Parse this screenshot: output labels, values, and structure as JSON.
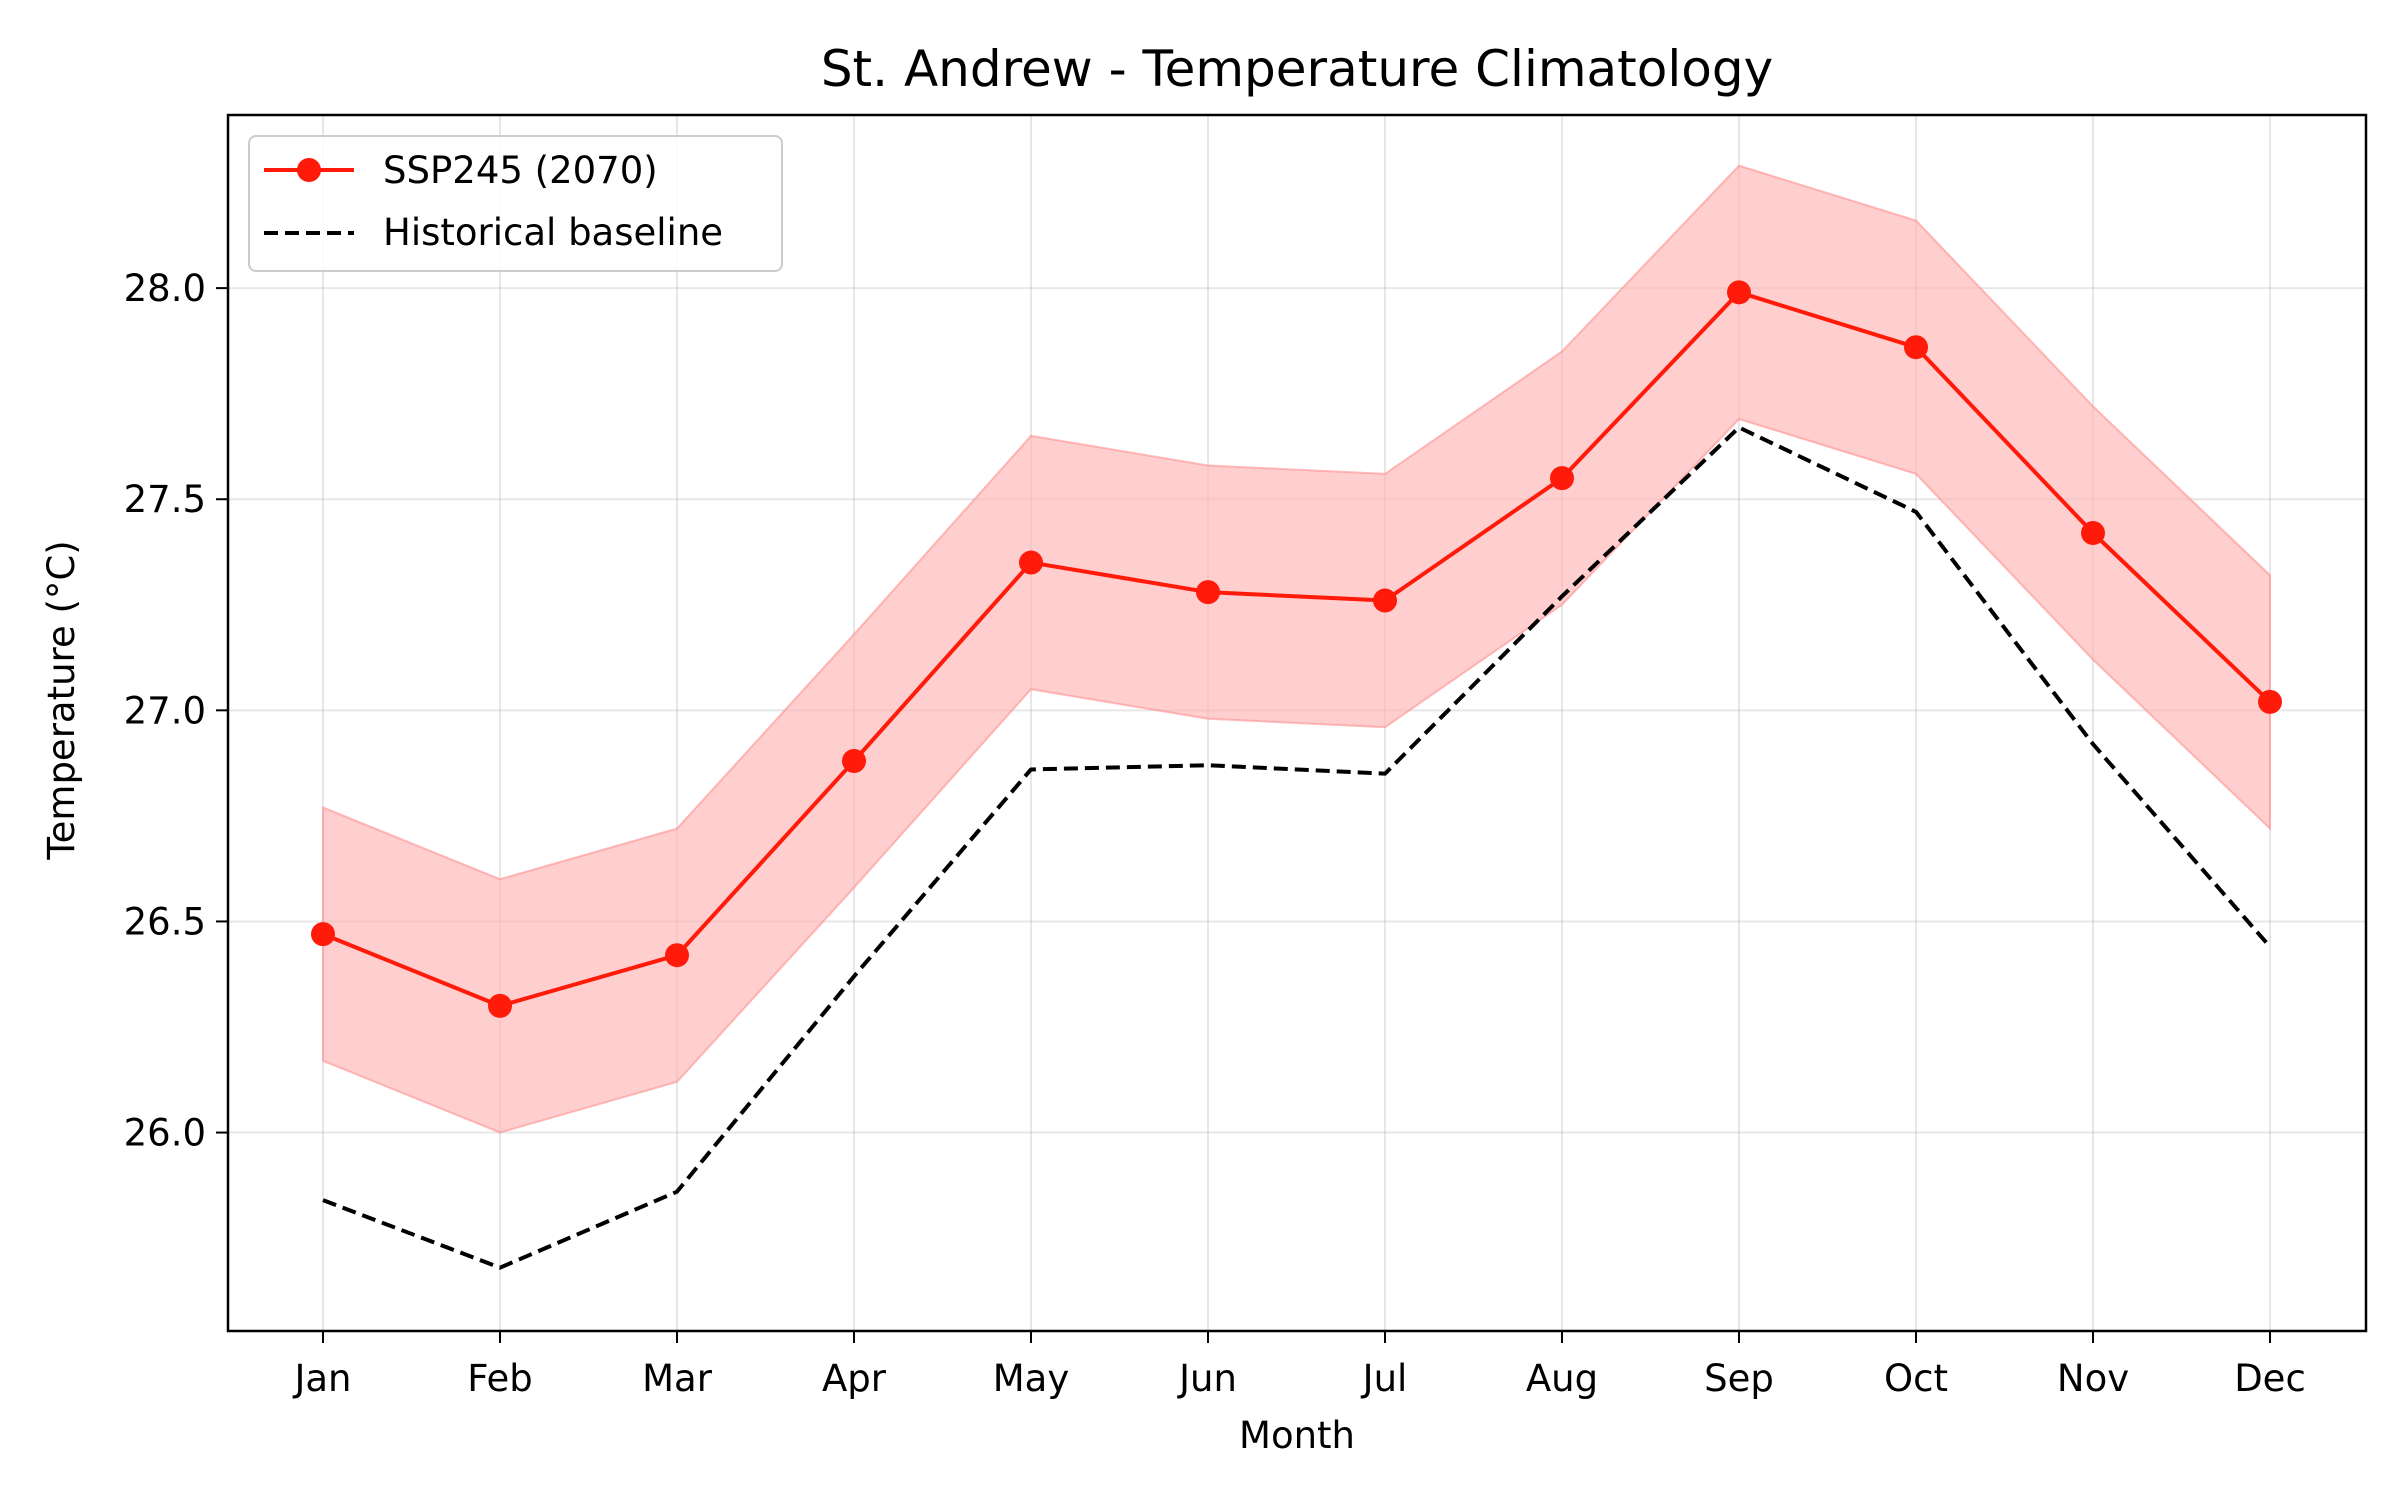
{
  "chart_data": {
    "type": "line",
    "title": "St. Andrew - Temperature Climatology",
    "xlabel": "Month",
    "ylabel": "Temperature (°C)",
    "categories": [
      "Jan",
      "Feb",
      "Mar",
      "Apr",
      "May",
      "Jun",
      "Jul",
      "Aug",
      "Sep",
      "Oct",
      "Nov",
      "Dec"
    ],
    "ylim": [
      25.53,
      28.41
    ],
    "yticks": [
      "26.0",
      "26.5",
      "27.0",
      "27.5",
      "28.0"
    ],
    "grid": true,
    "legend_position": "upper left",
    "series": [
      {
        "name": "SSP245 (2070)",
        "style": "solid-with-markers",
        "color": "#ff1a0a",
        "values": [
          26.47,
          26.3,
          26.42,
          26.88,
          27.35,
          27.28,
          27.26,
          27.55,
          27.99,
          27.86,
          27.42,
          27.02
        ],
        "band_lower": [
          26.17,
          26.0,
          26.12,
          26.58,
          27.05,
          26.98,
          26.96,
          27.25,
          27.69,
          27.56,
          27.12,
          26.72
        ],
        "band_upper": [
          26.77,
          26.6,
          26.72,
          27.18,
          27.65,
          27.58,
          27.56,
          27.85,
          28.29,
          28.16,
          27.72,
          27.32
        ],
        "band_color": "#ffb3b3"
      },
      {
        "name": "Historical baseline",
        "style": "dashed",
        "color": "#000000",
        "values": [
          25.84,
          25.68,
          25.86,
          26.37,
          26.86,
          26.87,
          26.85,
          27.27,
          27.67,
          27.47,
          26.92,
          26.44
        ]
      }
    ]
  }
}
